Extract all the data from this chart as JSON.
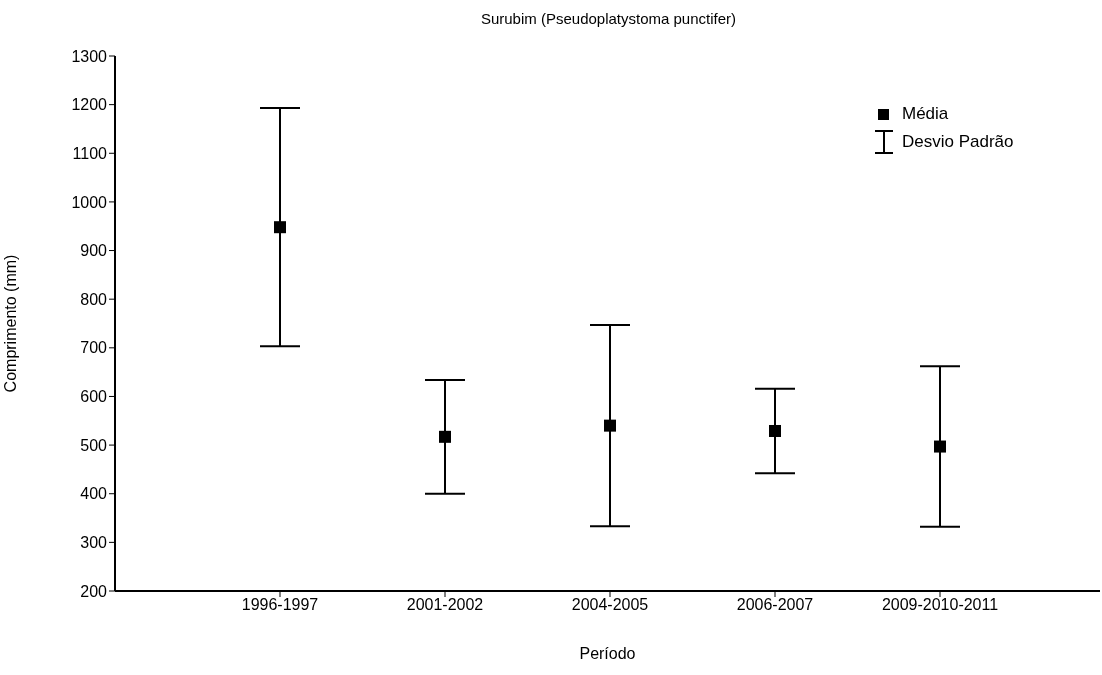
{
  "chart_data": {
    "type": "scatter",
    "title": "Surubim (Pseudoplatystoma punctifer)",
    "xlabel": "Período",
    "ylabel": "Comprimento (mm)",
    "categories": [
      "1996-1997",
      "2001-2002",
      "2004-2005",
      "2006-2007",
      "2009-2010-2011"
    ],
    "series": [
      {
        "name": "Média",
        "color": "#000000",
        "values": [
          948,
          517,
          540,
          529,
          497
        ],
        "errors": [
          245,
          117,
          207,
          87,
          165
        ]
      }
    ],
    "annotations": [
      "Desvio Padrão"
    ],
    "ylim": [
      200,
      1300
    ],
    "yticks": [
      200,
      300,
      400,
      500,
      600,
      700,
      800,
      900,
      1000,
      1100,
      1200,
      1300
    ],
    "marker": "square",
    "legend": "top right",
    "grid": false
  }
}
